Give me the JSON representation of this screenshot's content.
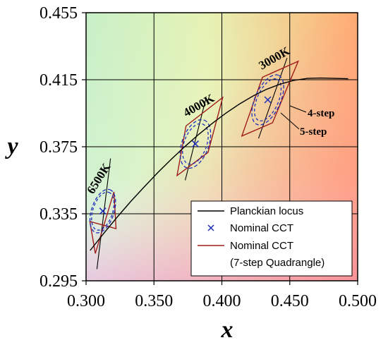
{
  "chart_data": {
    "type": "scatter",
    "title": "",
    "xlabel": "x",
    "ylabel": "y",
    "xlim": [
      0.3,
      0.5
    ],
    "ylim": [
      0.295,
      0.455
    ],
    "grid": true,
    "legend_placement": "bottom-right",
    "x_ticks": [
      "0.300",
      "0.350",
      "0.400",
      "0.450",
      "0.500"
    ],
    "y_ticks": [
      "0.295",
      "0.335",
      "0.375",
      "0.415",
      "0.455"
    ],
    "series": [
      {
        "name": "Planckian locus",
        "type": "line",
        "color": "#000000",
        "x": [
          0.303,
          0.313,
          0.323,
          0.333,
          0.343,
          0.353,
          0.363,
          0.373,
          0.383,
          0.393,
          0.403,
          0.413,
          0.423,
          0.433,
          0.443,
          0.453,
          0.463,
          0.473,
          0.483,
          0.493
        ],
        "y": [
          0.3131,
          0.3233,
          0.3331,
          0.3424,
          0.3512,
          0.3597,
          0.3677,
          0.3753,
          0.3824,
          0.389,
          0.3951,
          0.4005,
          0.4053,
          0.4093,
          0.4124,
          0.4146,
          0.4158,
          0.416,
          0.4158,
          0.4156
        ]
      },
      {
        "name": "Nominal CCT",
        "type": "marker",
        "color": "#1f2fb8",
        "x": [
          0.3123,
          0.3805,
          0.4338
        ],
        "y": [
          0.3366,
          0.3767,
          0.403
        ]
      },
      {
        "name": "Nominal CCT (7-step Quadrangle)",
        "type": "quadrangle",
        "color": "#a01c1c",
        "quadrangles": [
          [
            [
              0.3028,
              0.3304
            ],
            [
              0.3221,
              0.3261
            ],
            [
              0.3205,
              0.3481
            ],
            [
              0.3068,
              0.3113
            ]
          ],
          [
            [
              0.3736,
              0.3874
            ],
            [
              0.4006,
              0.4044
            ],
            [
              0.3898,
              0.3716
            ],
            [
              0.367,
              0.3578
            ]
          ],
          [
            [
              0.4299,
              0.4165
            ],
            [
              0.4562,
              0.426
            ],
            [
              0.4373,
              0.3893
            ],
            [
              0.4147,
              0.3814
            ]
          ]
        ]
      }
    ],
    "step_ellipses": [
      {
        "name": "4-step",
        "color": "#1f2fb8",
        "centers": [
          [
            0.3123,
            0.3366
          ],
          [
            0.3805,
            0.3767
          ],
          [
            0.4338,
            0.403
          ]
        ]
      },
      {
        "name": "5-step",
        "color": "#1f2fb8",
        "centers": [
          [
            0.3123,
            0.3366
          ],
          [
            0.3805,
            0.3767
          ],
          [
            0.4338,
            0.403
          ]
        ]
      }
    ],
    "iso_lines": [
      {
        "label": "6500K",
        "x1": 0.318,
        "y1": 0.368,
        "x2": 0.308,
        "y2": 0.302
      },
      {
        "label": "4000K",
        "x1": 0.388,
        "y1": 0.403,
        "x2": 0.373,
        "y2": 0.355
      },
      {
        "label": "3000K",
        "x1": 0.448,
        "y1": 0.428,
        "x2": 0.427,
        "y2": 0.38
      }
    ],
    "annotations": [
      "6500K",
      "4000K",
      "3000K",
      "4-step",
      "5-step"
    ]
  },
  "legend": {
    "locus": "Planckian locus",
    "marker": "Nominal CCT",
    "quad_line1": "Nominal CCT",
    "quad_line2": "(7-step Quadrangle)"
  },
  "labels": {
    "cct_6500": "6500K",
    "cct_4000": "4000K",
    "cct_3000": "3000K",
    "step4": "4-step",
    "step5": "5-step"
  }
}
